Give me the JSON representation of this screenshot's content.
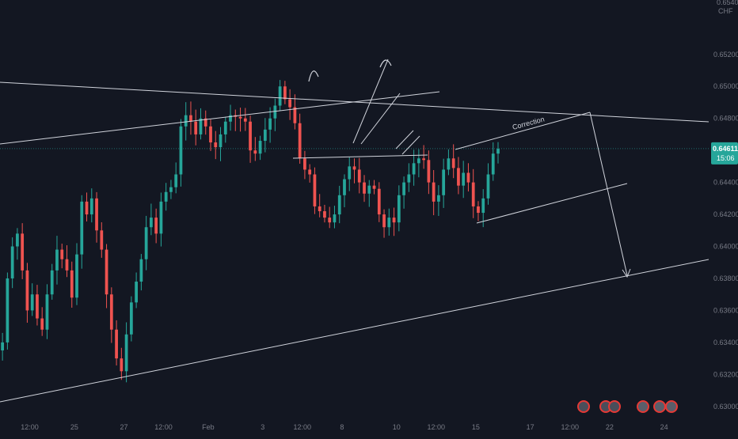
{
  "chart_data": {
    "type": "candlestick",
    "currency_label": "CHF",
    "partial_top_label": "0.65400",
    "y_ticks": [
      "0.65200",
      "0.65000",
      "0.64800",
      "0.64400",
      "0.64200",
      "0.64000",
      "0.63800",
      "0.63600",
      "0.63400",
      "0.63200",
      "0.63000"
    ],
    "ylim": [
      0.6292,
      0.6554
    ],
    "x_ticks": [
      {
        "label": "12:00",
        "bar": 6
      },
      {
        "label": "25",
        "bar": 15
      },
      {
        "label": "27",
        "bar": 25
      },
      {
        "label": "12:00",
        "bar": 33
      },
      {
        "label": "Feb",
        "bar": 42
      },
      {
        "label": "3",
        "bar": 53
      },
      {
        "label": "12:00",
        "bar": 61
      },
      {
        "label": "8",
        "bar": 69
      },
      {
        "label": "10",
        "bar": 80
      },
      {
        "label": "12:00",
        "bar": 88
      },
      {
        "label": "15",
        "bar": 96
      },
      {
        "label": "17",
        "bar": 107
      },
      {
        "label": "12:00",
        "bar": 115
      },
      {
        "label": "22",
        "bar": 123
      },
      {
        "label": "24",
        "bar": 134
      }
    ],
    "xlim_bars": [
      0,
      143
    ],
    "current_price": {
      "value": 0.64611,
      "label": "0.64611",
      "countdown": "15:06",
      "color": "#26a69a"
    },
    "up_color": "#26a69a",
    "down_color": "#ef5350",
    "closes": [
      0.634,
      0.638,
      0.64,
      0.6408,
      0.6385,
      0.636,
      0.637,
      0.6355,
      0.6348,
      0.637,
      0.6385,
      0.6398,
      0.6392,
      0.6385,
      0.6368,
      0.6395,
      0.6428,
      0.642,
      0.643,
      0.641,
      0.6398,
      0.637,
      0.6348,
      0.633,
      0.6322,
      0.6345,
      0.6365,
      0.6378,
      0.6392,
      0.6412,
      0.6418,
      0.6408,
      0.6428,
      0.6434,
      0.6437,
      0.6445,
      0.6475,
      0.6482,
      0.6478,
      0.647,
      0.648,
      0.6475,
      0.6465,
      0.6462,
      0.647,
      0.6478,
      0.6482,
      0.6481,
      0.648,
      0.6478,
      0.646,
      0.6458,
      0.6466,
      0.6473,
      0.648,
      0.6488,
      0.65,
      0.6492,
      0.6487,
      0.6477,
      0.6455,
      0.6448,
      0.6445,
      0.6425,
      0.6422,
      0.6418,
      0.6415,
      0.642,
      0.6432,
      0.6442,
      0.645,
      0.6448,
      0.644,
      0.6433,
      0.6438,
      0.6436,
      0.642,
      0.6412,
      0.6418,
      0.6415,
      0.6432,
      0.644,
      0.6445,
      0.6452,
      0.6455,
      0.6454,
      0.644,
      0.6428,
      0.6432,
      0.6448,
      0.6455,
      0.6449,
      0.6438,
      0.6446,
      0.644,
      0.6425,
      0.6421,
      0.643,
      0.6445,
      0.6458,
      0.6461
    ],
    "price_labels_extra": [],
    "annotations": [
      {
        "type": "text",
        "text": "Correction"
      }
    ]
  },
  "toolbar_icons": [
    "undo-icon",
    "redo-icon",
    "flag-icon",
    "alert-icon",
    "alert-icon",
    "alert-icon"
  ]
}
